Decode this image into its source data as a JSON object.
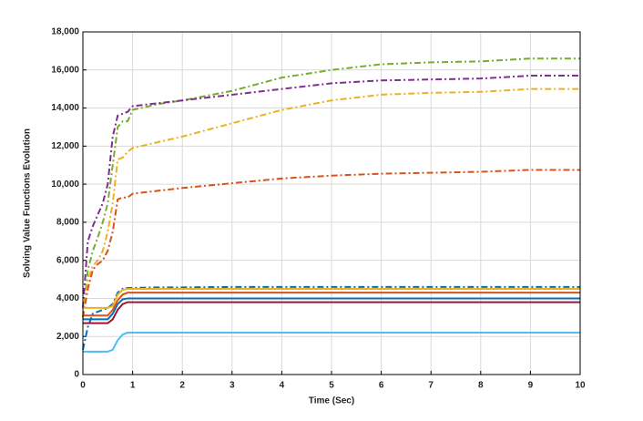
{
  "chart_data": {
    "type": "line",
    "x_label": "Time (Sec)",
    "y_label": "Solving Value Functions Evolution",
    "x": [
      0,
      0.1,
      0.2,
      0.3,
      0.4,
      0.5,
      0.6,
      0.7,
      0.8,
      0.9,
      1,
      1.5,
      2,
      3,
      4,
      5,
      6,
      7,
      8,
      9,
      10
    ],
    "series": [
      {
        "color": "#77ac30",
        "style": "dashdot",
        "values": [
          3000,
          5500,
          6500,
          7200,
          8000,
          9000,
          11000,
          13000,
          13300,
          13300,
          13900,
          14200,
          14400,
          14900,
          15600,
          16000,
          16300,
          16400,
          16450,
          16600,
          16600
        ]
      },
      {
        "color": "#7e2f8e",
        "style": "dashdot",
        "values": [
          3500,
          7000,
          7800,
          8400,
          9000,
          10000,
          12500,
          13600,
          13700,
          13800,
          14100,
          14250,
          14400,
          14700,
          15000,
          15300,
          15450,
          15500,
          15550,
          15700,
          15700
        ]
      },
      {
        "color": "#edb120",
        "style": "dashdot",
        "values": [
          3000,
          5000,
          5700,
          6000,
          6500,
          7500,
          9000,
          11300,
          11400,
          11700,
          11900,
          12200,
          12500,
          13200,
          13900,
          14400,
          14700,
          14800,
          14850,
          15000,
          15000
        ]
      },
      {
        "color": "#d95319",
        "style": "dashdot",
        "values": [
          3000,
          4500,
          5500,
          5800,
          6000,
          6500,
          7500,
          9200,
          9300,
          9300,
          9500,
          9650,
          9800,
          10050,
          10300,
          10450,
          10550,
          10600,
          10650,
          10750,
          10750
        ]
      },
      {
        "color": "#0072bd",
        "style": "dashdot",
        "values": [
          1300,
          2500,
          3200,
          3300,
          3400,
          3500,
          3700,
          4300,
          4500,
          4550,
          4550,
          4580,
          4580,
          4600,
          4600,
          4600,
          4600,
          4600,
          4600,
          4600,
          4600
        ]
      },
      {
        "color": "#4dbeee",
        "style": "solid",
        "values": [
          1200,
          1200,
          1200,
          1200,
          1200,
          1200,
          1300,
          1800,
          2100,
          2200,
          2200,
          2200,
          2200,
          2200,
          2200,
          2200,
          2200,
          2200,
          2200,
          2200,
          2200
        ]
      },
      {
        "color": "#a2142f",
        "style": "solid",
        "values": [
          2700,
          2700,
          2700,
          2700,
          2700,
          2700,
          2900,
          3400,
          3700,
          3800,
          3800,
          3800,
          3800,
          3800,
          3800,
          3800,
          3800,
          3800,
          3800,
          3800,
          3800
        ]
      },
      {
        "color": "#0072bd",
        "style": "solid",
        "values": [
          2900,
          2900,
          2900,
          2900,
          2900,
          2900,
          3200,
          3700,
          3950,
          4000,
          4000,
          4000,
          4000,
          4000,
          4000,
          4000,
          4000,
          4000,
          4000,
          4000,
          4000
        ]
      },
      {
        "color": "#d95319",
        "style": "solid",
        "values": [
          3100,
          3100,
          3100,
          3100,
          3100,
          3100,
          3400,
          3900,
          4200,
          4300,
          4300,
          4300,
          4300,
          4300,
          4300,
          4300,
          4300,
          4300,
          4300,
          4300,
          4300
        ]
      },
      {
        "color": "#edb120",
        "style": "solid",
        "values": [
          3500,
          3500,
          3500,
          3500,
          3500,
          3500,
          3600,
          4200,
          4450,
          4500,
          4500,
          4500,
          4500,
          4500,
          4500,
          4500,
          4500,
          4500,
          4500,
          4500,
          4500
        ]
      }
    ],
    "xlim": [
      0,
      10
    ],
    "xticks": [
      0,
      1,
      2,
      3,
      4,
      5,
      6,
      7,
      8,
      9,
      10
    ],
    "ylim": [
      0,
      18000
    ],
    "yticks": [
      0,
      {
        "value": 2000,
        "label": "2,000"
      },
      {
        "value": 4000,
        "label": "4,000"
      },
      {
        "value": 6000,
        "label": "6,000"
      },
      {
        "value": 8000,
        "label": "8,000"
      },
      {
        "value": 10000,
        "label": "10,000"
      },
      {
        "value": 12000,
        "label": "12,000"
      },
      {
        "value": 14000,
        "label": "14,000"
      },
      {
        "value": 16000,
        "label": "16,000"
      },
      {
        "value": 18000,
        "label": "18,000"
      }
    ],
    "grid": true
  }
}
